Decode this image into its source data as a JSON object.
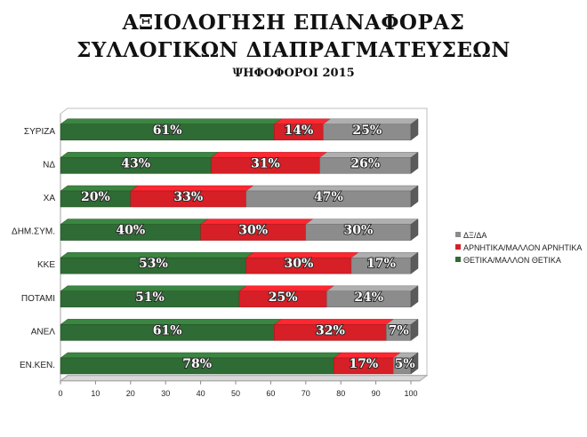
{
  "header": {
    "title_line1": "ΑΞΙΟΛΟΓΗΣΗ ΕΠΑΝΑΦΟΡΑΣ",
    "title_line2": "ΣΥΛΛΟΓΙΚΩΝ ΔΙΑΠΡΑΓΜΑΤΕΥΣΕΩΝ",
    "subtitle": "ΨΗΦΟΦΟΡΟΙ 2015"
  },
  "chart_data": {
    "type": "bar",
    "orientation": "horizontal",
    "stacked": true,
    "categories": [
      "ΣΥΡΙΖΑ",
      "ΝΔ",
      "ΧΑ",
      "ΔΗΜ.ΣΥΜ.",
      "ΚΚΕ",
      "ΠΟΤΑΜΙ",
      "ΑΝΕΛ",
      "ΕΝ.ΚΕΝ."
    ],
    "series": [
      {
        "name": "ΘΕΤΙΚΑ/ΜΑΛΛΟΝ ΘΕΤΙΚΑ",
        "color": "#2f6b34",
        "values": [
          61,
          43,
          20,
          40,
          53,
          51,
          61,
          78
        ]
      },
      {
        "name": "ΑΡΝΗΤΙΚΑ/ΜΑΛΛΟΝ ΑΡΝΗΤΙΚΑ",
        "color": "#d61f26",
        "values": [
          14,
          31,
          33,
          30,
          30,
          25,
          32,
          17
        ]
      },
      {
        "name": "ΔΞ/ΔΑ",
        "color": "#8c8c8c",
        "values": [
          25,
          26,
          47,
          30,
          17,
          24,
          7,
          5
        ]
      }
    ],
    "xlim": [
      0,
      100
    ],
    "xticks": [
      0,
      10,
      20,
      30,
      40,
      50,
      60,
      70,
      80,
      90,
      100
    ],
    "legend_order": [
      "ΔΞ/ΔΑ",
      "ΑΡΝΗΤΙΚΑ/ΜΑΛΛΟΝ ΑΡΝΗΤΙΚΑ",
      "ΘΕΤΙΚΑ/ΜΑΛΛΟΝ ΘΕΤΙΚΑ"
    ],
    "legend_position": "right",
    "value_suffix": "%",
    "grid": false
  }
}
